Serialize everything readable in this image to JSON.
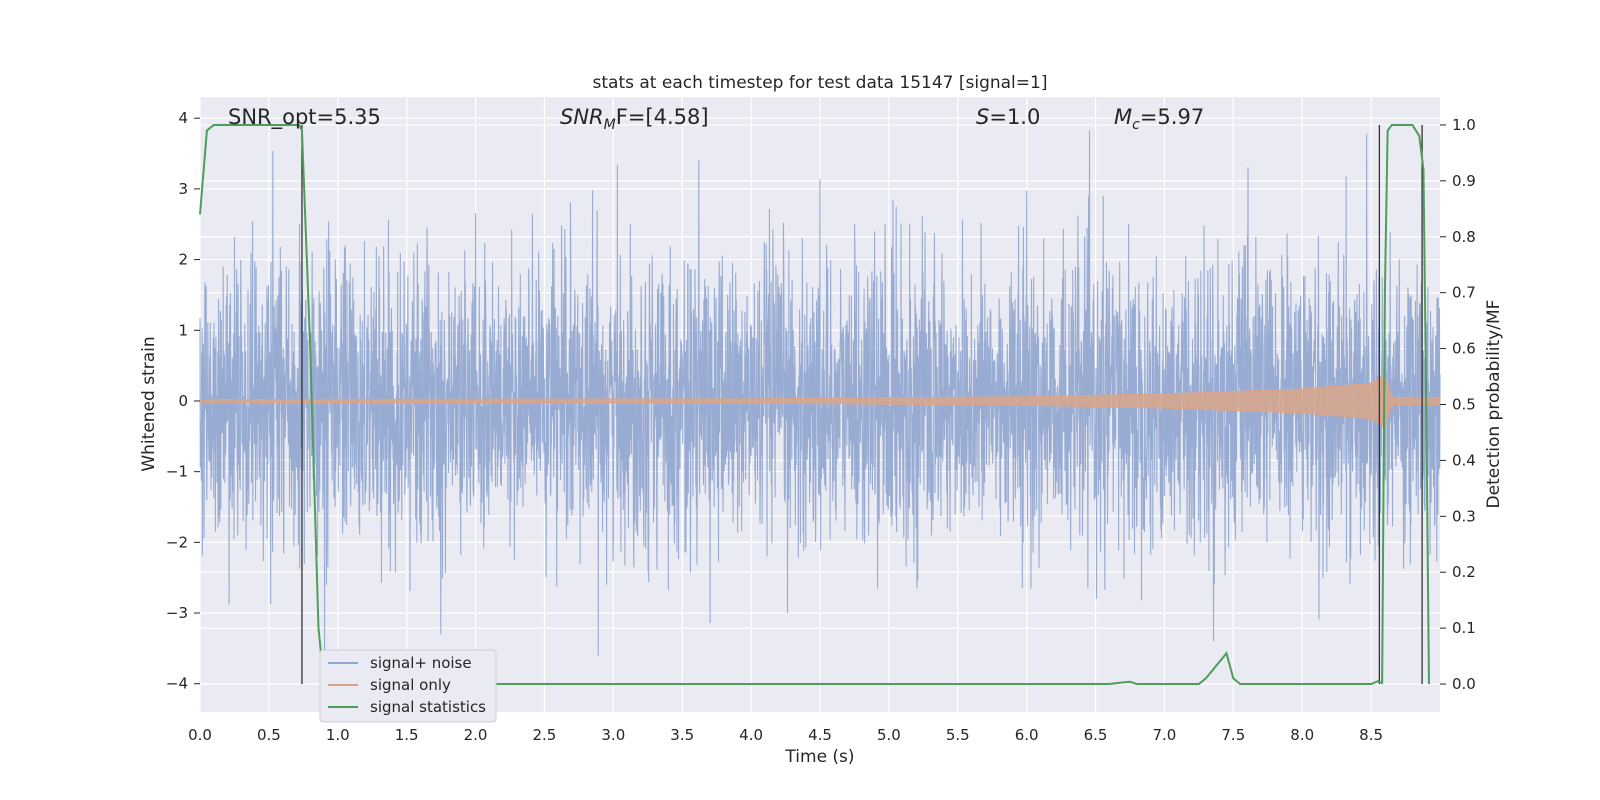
{
  "chart_data": {
    "type": "line",
    "title": "stats at each timestep for test data 15147 [signal=1]",
    "xlabel": "Time (s)",
    "ylabel": "Whitened strain",
    "y2label": "Detection probability/MF",
    "xlim": [
      0.0,
      9.0
    ],
    "ylim": [
      -4.4,
      4.3
    ],
    "y2lim": [
      -0.05,
      1.05
    ],
    "xticks": [
      "0.0",
      "0.5",
      "1.0",
      "1.5",
      "2.0",
      "2.5",
      "3.0",
      "3.5",
      "4.0",
      "4.5",
      "5.0",
      "5.5",
      "6.0",
      "6.5",
      "7.0",
      "7.5",
      "8.0",
      "8.5"
    ],
    "yticks": [
      "4",
      "3",
      "2",
      "1",
      "0",
      "−1",
      "−2",
      "−3",
      "−4"
    ],
    "y2ticks": [
      "1.0",
      "0.9",
      "0.8",
      "0.7",
      "0.6",
      "0.5",
      "0.4",
      "0.3",
      "0.2",
      "0.1",
      "0.0"
    ],
    "grid": true,
    "legend_position": "lower-left",
    "annotations": {
      "snr_opt": "SNR_opt=5.35",
      "snr_mf_a": "SNR",
      "snr_mf_b": "M",
      "snr_mf_c": "F=[4.58]",
      "s_a": "S",
      "s_b": "=1.0",
      "mc_a": "M",
      "mc_b": "c",
      "mc_c": "=5.97"
    },
    "series": [
      {
        "name": "signal+ noise",
        "color": "#8fa5cf",
        "axis": "left",
        "kind": "noise",
        "amplitude_1sigma": 1.0,
        "max": 3.9,
        "min": -3.6
      },
      {
        "name": "signal only",
        "color": "#d9a48a",
        "axis": "left",
        "kind": "chirp",
        "envelope": [
          [
            0.0,
            0.02
          ],
          [
            4.0,
            0.03
          ],
          [
            6.0,
            0.06
          ],
          [
            7.0,
            0.1
          ],
          [
            8.0,
            0.17
          ],
          [
            8.5,
            0.25
          ],
          [
            8.6,
            0.38
          ],
          [
            8.65,
            0.05
          ],
          [
            9.0,
            0.05
          ]
        ]
      },
      {
        "name": "signal statistics",
        "color": "#4c9e5a",
        "axis": "right",
        "kind": "line",
        "x": [
          0.0,
          0.05,
          0.1,
          0.2,
          0.72,
          0.74,
          0.8,
          0.86,
          0.9,
          6.6,
          6.7,
          6.75,
          6.8,
          7.25,
          7.3,
          7.4,
          7.45,
          7.5,
          7.55,
          8.5,
          8.55,
          8.58,
          8.6,
          8.62,
          8.65,
          8.7,
          8.8,
          8.85,
          8.88,
          8.9,
          8.92
        ],
        "y": [
          0.84,
          0.99,
          1.0,
          1.0,
          1.0,
          0.99,
          0.6,
          0.1,
          0.0,
          0.0,
          0.003,
          0.004,
          0.0,
          0.0,
          0.01,
          0.04,
          0.055,
          0.01,
          0.0,
          0.0,
          0.005,
          0.002,
          0.7,
          0.99,
          1.0,
          1.0,
          1.0,
          0.98,
          0.92,
          0.5,
          0.0
        ]
      }
    ],
    "vertical_lines_x": [
      0.74,
      8.56,
      8.87
    ],
    "legend": [
      "signal+ noise",
      "signal only",
      "signal statistics"
    ]
  }
}
